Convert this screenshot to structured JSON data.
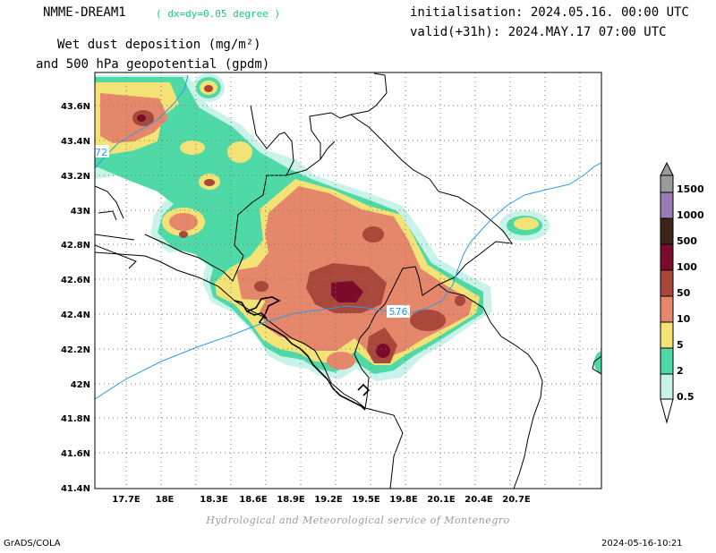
{
  "header": {
    "model": "NMME-DREAM1",
    "grid_note": "( dx=dy=0.05 degree )",
    "init": "initialisation: 2024.05.16. 00:00 UTC",
    "valid": "valid(+31h): 2024.MAY.17 07:00 UTC",
    "variable_line1": "Wet dust deposition (mg/m²)",
    "variable_line2": "and 500 hPa geopotential (gpdm)"
  },
  "map": {
    "lat_labels": [
      "43.6N",
      "43.4N",
      "43.2N",
      "43N",
      "42.8N",
      "42.6N",
      "42.4N",
      "42.2N",
      "42N",
      "41.8N",
      "41.6N",
      "41.4N"
    ],
    "lon_labels": [
      "17.7E",
      "18E",
      "18.3E",
      "18.6E",
      "18.9E",
      "19.2E",
      "19.5E",
      "19.8E",
      "20.1E",
      "20.4E",
      "20.7E"
    ],
    "contour_labels": [
      "72",
      "576"
    ],
    "contour_color": "#2b9be6"
  },
  "legend": {
    "labels": [
      "1500",
      "1000",
      "500",
      "100",
      "50",
      "10",
      "5",
      "2",
      "0.5"
    ],
    "colors": [
      "#9b7bb4",
      "#3d2418",
      "#7b0b2b",
      "#a8473a",
      "#e5876a",
      "#f3e276",
      "#4fd9a6",
      "#c9f2ea"
    ]
  },
  "footer": {
    "credit": "Hydrological and Meteorological service of Montenegro",
    "software": "GrADS/COLA",
    "timestamp": "2024-05-16-10:21"
  }
}
